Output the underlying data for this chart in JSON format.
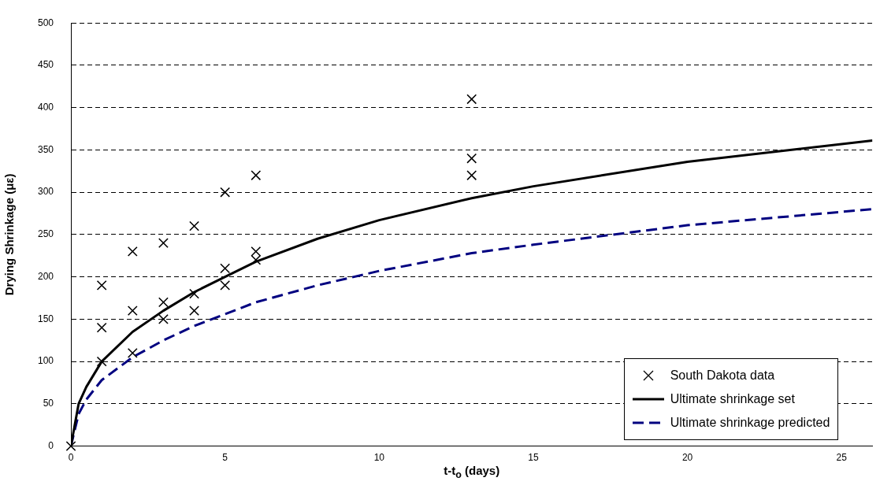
{
  "chart_data": {
    "type": "line",
    "xlabel": "t-t$_{o}$ (days)",
    "ylabel": "Drying Shrinkage (με)",
    "xlim": [
      0,
      26
    ],
    "xticks": [
      0,
      5,
      10,
      15,
      20,
      25
    ],
    "ylim": [
      0,
      500
    ],
    "yticks": [
      0,
      50,
      100,
      150,
      200,
      250,
      300,
      350,
      400,
      450,
      500
    ],
    "grid": "y",
    "legend": "bottom right",
    "series": [
      {
        "name": "South Dakota data",
        "type": "scatter",
        "marker": "cross",
        "color": "#000000",
        "x": [
          0,
          1,
          1,
          1,
          2,
          2,
          2,
          3,
          3,
          3,
          4,
          4,
          4,
          5,
          5,
          5,
          6,
          6,
          6,
          13,
          13,
          13
        ],
        "values": [
          0,
          190,
          140,
          100,
          230,
          160,
          110,
          240,
          170,
          150,
          260,
          180,
          160,
          300,
          210,
          190,
          320,
          230,
          220,
          410,
          340,
          320
        ]
      },
      {
        "name": "Ultimate shrinkage set",
        "type": "line",
        "line_style": "solid",
        "color": "#000000",
        "x": [
          0,
          0.25,
          0.5,
          1,
          2,
          3,
          4,
          5,
          6,
          8,
          10,
          13,
          15,
          20,
          26
        ],
        "values": [
          0,
          50,
          70,
          100,
          135,
          160,
          182,
          200,
          218,
          245,
          267,
          293,
          307,
          336,
          361
        ]
      },
      {
        "name": "Ultimate shrinkage predicted",
        "type": "line",
        "line_style": "dashed",
        "color": "#000080",
        "x": [
          0,
          0.25,
          0.5,
          1,
          2,
          3,
          4,
          5,
          6,
          8,
          10,
          13,
          15,
          20,
          26
        ],
        "values": [
          0,
          38,
          55,
          78,
          105,
          125,
          142,
          156,
          170,
          190,
          207,
          228,
          238,
          261,
          280
        ]
      }
    ]
  }
}
